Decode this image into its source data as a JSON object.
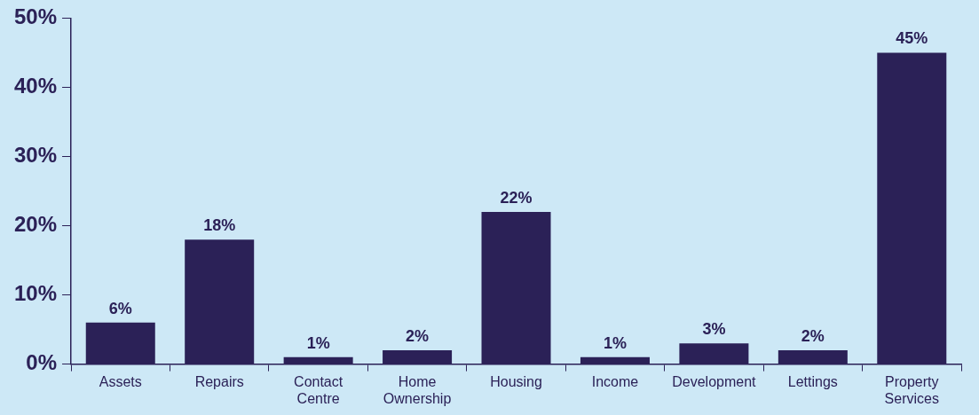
{
  "chart_data": {
    "type": "bar",
    "categories": [
      "Assets",
      "Repairs",
      "Contact Centre",
      "Home Ownership",
      "Housing",
      "Income",
      "Development",
      "Lettings",
      "Property Services"
    ],
    "values": [
      6,
      18,
      1,
      2,
      22,
      1,
      3,
      2,
      45
    ],
    "value_labels": [
      "6%",
      "18%",
      "1%",
      "2%",
      "22%",
      "1%",
      "3%",
      "2%",
      "45%"
    ],
    "color": "#2b2157",
    "ylim": [
      0,
      50
    ],
    "yticks": [
      {
        "value": 0,
        "label": "0%"
      },
      {
        "value": 10,
        "label": "10%"
      },
      {
        "value": 20,
        "label": "20%"
      },
      {
        "value": 30,
        "label": "30%"
      },
      {
        "value": 40,
        "label": "40%"
      },
      {
        "value": 50,
        "label": "50%"
      }
    ],
    "grid": false,
    "legend": false
  }
}
